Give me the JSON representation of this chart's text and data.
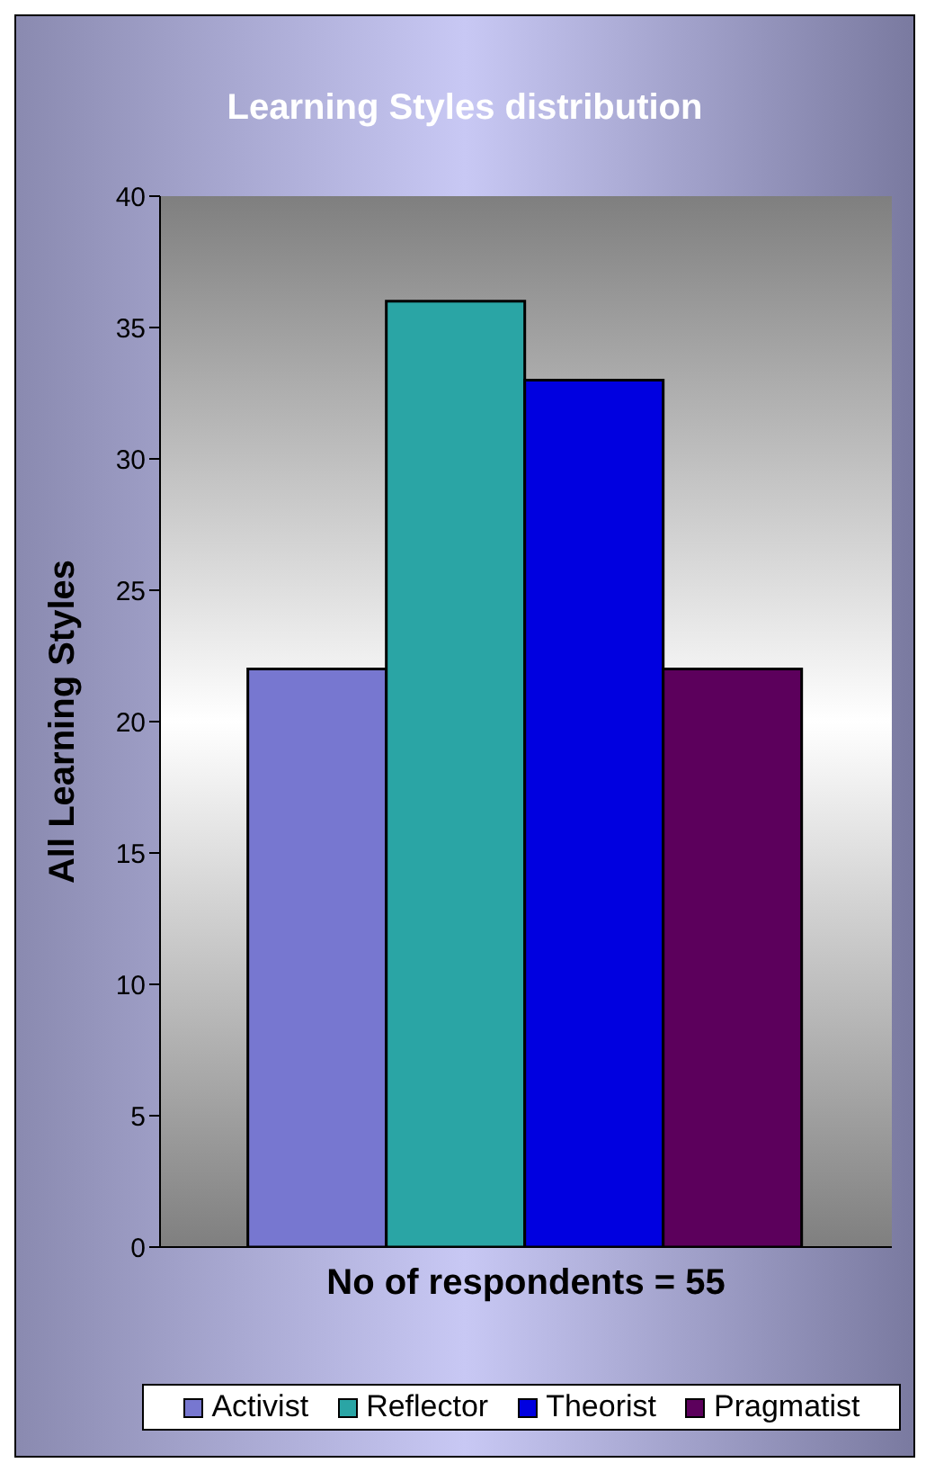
{
  "chart_data": {
    "type": "bar",
    "title": "Learning Styles distribution",
    "xlabel": "No of respondents = 55",
    "ylabel": "All Learning Styles",
    "categories": [
      null
    ],
    "series": [
      {
        "name": "Activist",
        "color": "#7777d0",
        "values": [
          22
        ]
      },
      {
        "name": "Reflector",
        "color": "#2aa5a5",
        "values": [
          36
        ]
      },
      {
        "name": "Theorist",
        "color": "#0000e0",
        "values": [
          33
        ]
      },
      {
        "name": "Pragmatist",
        "color": "#5c005c",
        "values": [
          22
        ]
      }
    ],
    "ylim": [
      0,
      40
    ],
    "yticks": [
      0,
      5,
      10,
      15,
      20,
      25,
      30,
      35,
      40
    ],
    "legend": "bottom"
  }
}
